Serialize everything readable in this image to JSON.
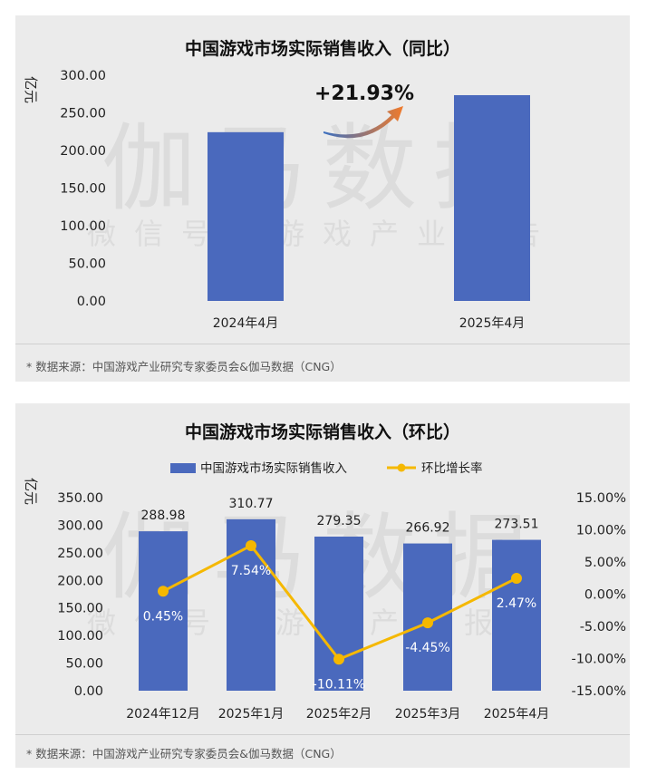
{
  "panel1": {
    "title": "中国游戏市场实际销售收入（同比）",
    "footer": "* 数据来源：中国游戏产业研究专家委员会&伽马数据（CNG）",
    "watermark_main": "伽马数据",
    "watermark_sub": "微信号：游戏产业报告",
    "growth_label": "+21.93%",
    "colors": {
      "bar": "#4a69bd",
      "arrow_start": "#3a6fc0",
      "arrow_end": "#f07b2c"
    }
  },
  "panel2": {
    "title": "中国游戏市场实际销售收入（环比）",
    "footer": "* 数据来源：中国游戏产业研究专家委员会&伽马数据（CNG）",
    "watermark_main": "伽马数据",
    "watermark_sub": "微信号：游戏产业报告",
    "colors": {
      "bar": "#4a69bd",
      "line": "#f5b800"
    }
  },
  "chart_data": [
    {
      "type": "bar",
      "title": "中国游戏市场实际销售收入（同比）",
      "ylabel": "亿元",
      "categories": [
        "2024年4月",
        "2025年4月"
      ],
      "values": [
        224.3,
        273.51
      ],
      "ylim": [
        0,
        300
      ],
      "yticks": [
        "300.00",
        "250.00",
        "200.00",
        "150.00",
        "100.00",
        "50.00",
        "0.00"
      ],
      "annotation": "+21.93%",
      "grid": false
    },
    {
      "type": "bar",
      "title": "中国游戏市场实际销售收入（环比）",
      "ylabel": "亿元",
      "categories": [
        "2024年12月",
        "2025年1月",
        "2025年2月",
        "2025年3月",
        "2025年4月"
      ],
      "series": [
        {
          "name": "中国游戏市场实际销售收入",
          "type": "bar",
          "values": [
            288.98,
            310.77,
            279.35,
            266.92,
            273.51
          ],
          "labels": [
            "288.98",
            "310.77",
            "279.35",
            "266.92",
            "273.51"
          ]
        },
        {
          "name": "环比增长率",
          "type": "line",
          "axis": "right",
          "values": [
            0.45,
            7.54,
            -10.11,
            -4.45,
            2.47
          ],
          "labels": [
            "0.45%",
            "7.54%",
            "-10.11%",
            "-4.45%",
            "2.47%"
          ]
        }
      ],
      "ylim": [
        0,
        350
      ],
      "yticks": [
        "350.00",
        "300.00",
        "250.00",
        "200.00",
        "150.00",
        "100.00",
        "50.00",
        "0.00"
      ],
      "y2lim": [
        -15,
        15
      ],
      "y2ticks": [
        "15.00%",
        "10.00%",
        "5.00%",
        "0.00%",
        "-5.00%",
        "-10.00%",
        "-15.00%"
      ],
      "legend": "top",
      "grid": false
    }
  ]
}
